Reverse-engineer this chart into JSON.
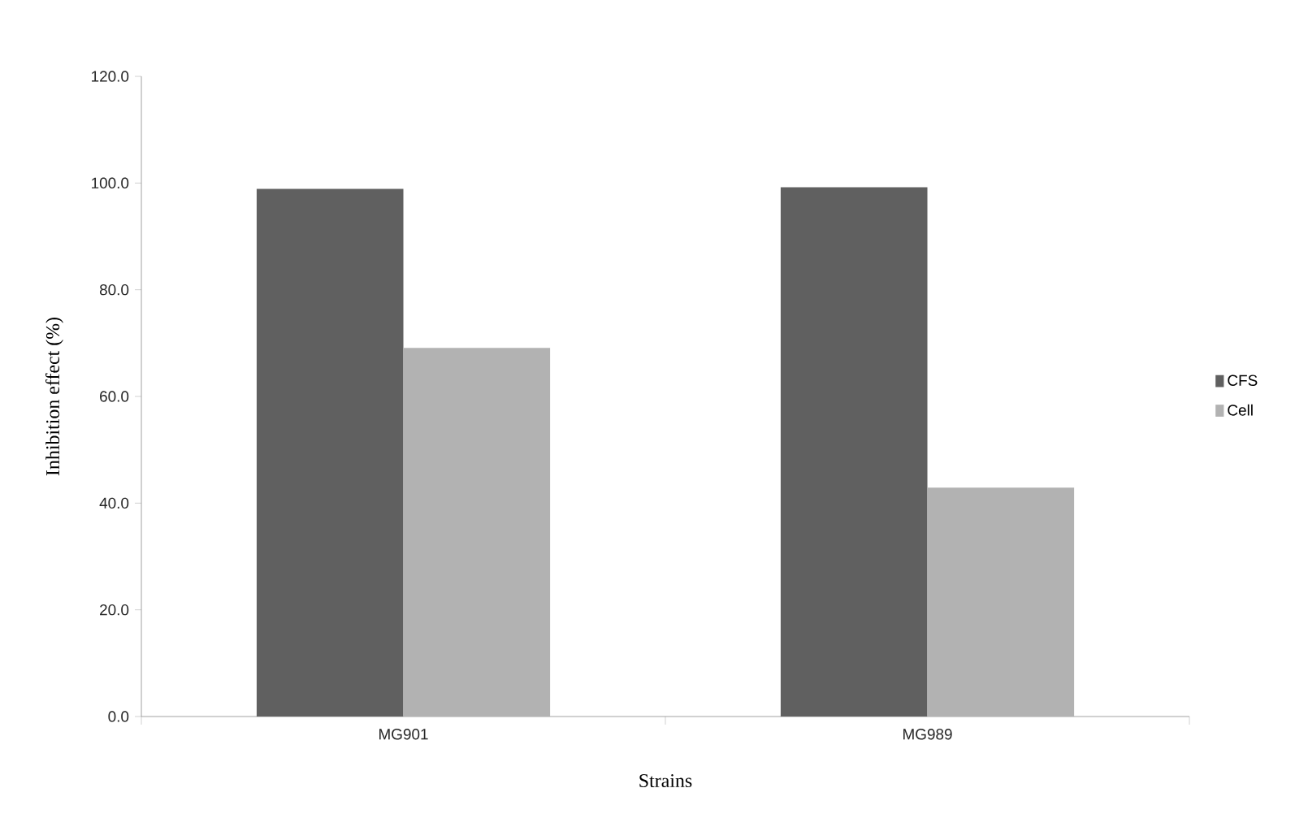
{
  "chart_data": {
    "type": "bar",
    "xlabel": "Strains",
    "ylabel": "Inhibition effect (%)",
    "categories": [
      "MG901",
      "MG989"
    ],
    "series": [
      {
        "name": "CFS",
        "color": "#606060",
        "values": [
          98.9,
          99.2
        ]
      },
      {
        "name": "Cell",
        "color": "#b2b2b2",
        "values": [
          69.1,
          42.9
        ]
      }
    ],
    "ylim": [
      0,
      120
    ],
    "yticks": [
      {
        "value": 0,
        "label": "0.0"
      },
      {
        "value": 20,
        "label": "20.0"
      },
      {
        "value": 40,
        "label": "40.0"
      },
      {
        "value": 60,
        "label": "60.0"
      },
      {
        "value": 80,
        "label": "80.0"
      },
      {
        "value": 100,
        "label": "100.0"
      },
      {
        "value": 120,
        "label": "120.0"
      }
    ],
    "legend": "right"
  }
}
